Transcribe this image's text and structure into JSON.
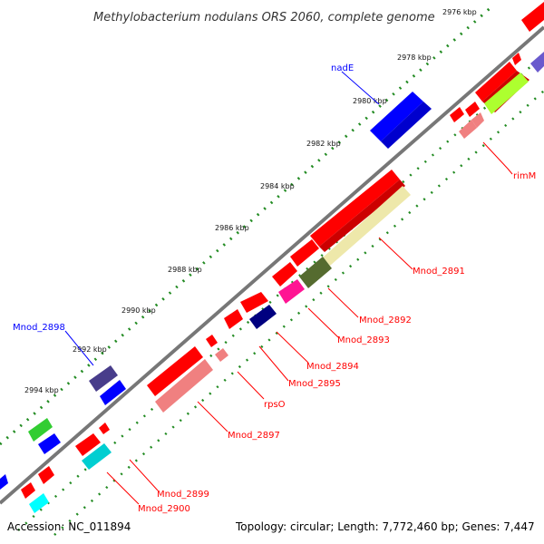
{
  "title": "Methylobacterium nodulans ORS 2060, complete genome",
  "ticks": {
    "t2976": "2976 kbp",
    "t2978": "2978 kbp",
    "t2980": "2980 kbp",
    "t2982": "2982 kbp",
    "t2984": "2984 kbp",
    "t2986": "2986 kbp",
    "t2988": "2988 kbp",
    "t2990": "2990 kbp",
    "t2992": "2992 kbp",
    "t2994": "2994 kbp"
  },
  "gene_labels": {
    "nadE": "nadE",
    "rimM": "rimM",
    "mnod2891": "Mnod_2891",
    "mnod2892": "Mnod_2892",
    "mnod2893": "Mnod_2893",
    "mnod2894": "Mnod_2894",
    "mnod2895": "Mnod_2895",
    "rpsO": "rpsO",
    "mnod2897": "Mnod_2897",
    "mnod2898": "Mnod_2898",
    "mnod2899": "Mnod_2899",
    "mnod2900": "Mnod_2900"
  },
  "footer": {
    "accession": "Accession: NC_011894",
    "stats": "Topology: circular; Length: 7,772,460 bp; Genes: 7,447"
  },
  "colors": {
    "backbone": "#777777",
    "tick_dot": "#228b22",
    "red_gene": "#ff0000",
    "pink_gene": "#f08080",
    "blue_gene": "#0000ff",
    "navy_gene": "#000080",
    "slate_gene": "#483d8b",
    "green_gene": "#32cd32",
    "olive_gene": "#556b2f",
    "lime_gene": "#adff2f",
    "khaki_gene": "#eee8aa",
    "magenta_gene": "#ff1493",
    "cyan_gene": "#00ced1",
    "label_red": "#ff0000",
    "label_blue": "#0000ff"
  }
}
